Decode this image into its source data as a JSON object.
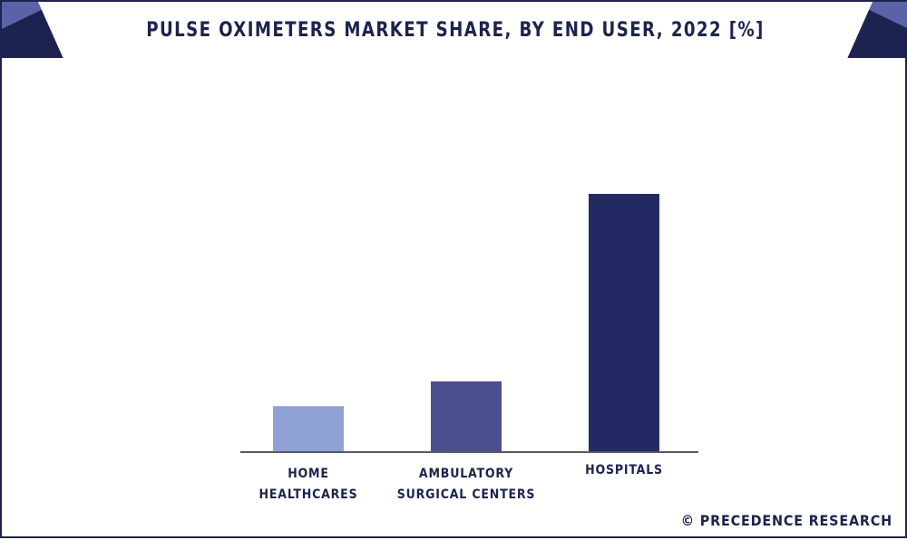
{
  "title": "PULSE OXIMETERS MARKET SHARE, BY END USER, 2022 [%]",
  "watermark": "© PRECEDENCE RESEARCH",
  "colors": {
    "frame": "#1c2350",
    "accent": "#5a63a8"
  },
  "chart_data": {
    "type": "bar",
    "title": "PULSE OXIMETERS MARKET SHARE, BY END USER, 2022 [%]",
    "categories": [
      [
        "HOME",
        "HEALTHCARES"
      ],
      [
        "AMBULATORY",
        "SURGICAL CENTERS"
      ],
      [
        "HOSPITALS"
      ]
    ],
    "values": [
      17.8,
      27.4,
      100
    ],
    "bar_colors": [
      "#8fa2d4",
      "#4b4f8e",
      "#232a63"
    ],
    "ylim": [
      0,
      100
    ],
    "xlabel": "",
    "ylabel": "",
    "grid": false,
    "legend": "none"
  }
}
